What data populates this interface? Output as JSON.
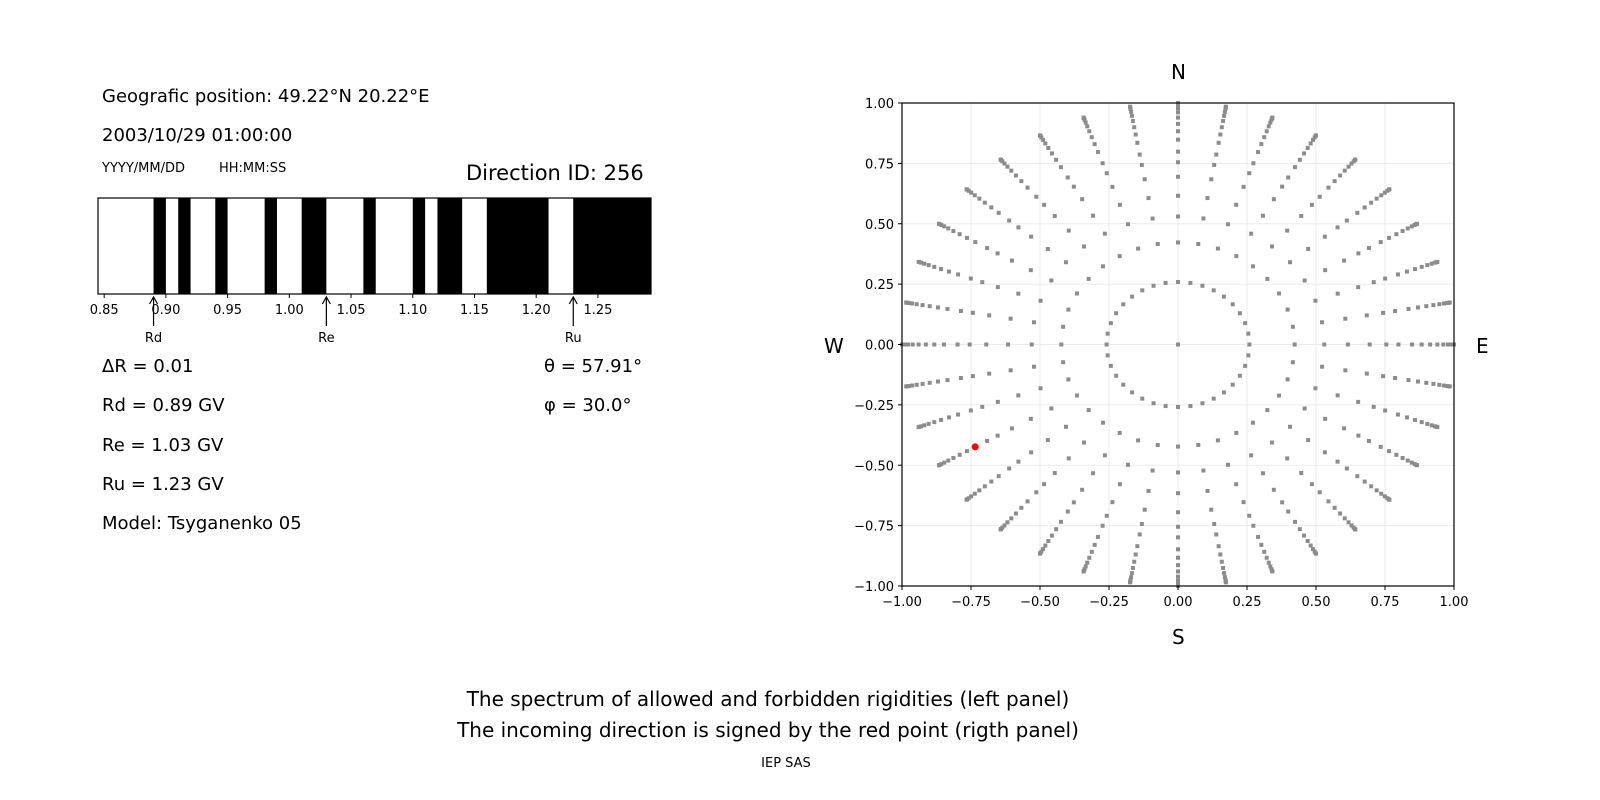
{
  "left_panel": {
    "position_label": "Geografic position: 49.22°N 20.22°E",
    "datetime": "2003/10/29 01:00:00",
    "date_format": "YYYY/MM/DD",
    "time_format": "HH:MM:SS",
    "direction_id": "Direction ID: 256",
    "delta_r": "ΔR = 0.01",
    "rd": "Rd = 0.89 GV",
    "re": "Re = 1.03 GV",
    "ru": "Ru = 1.23 GV",
    "model": "Model: Tsyganenko 05",
    "theta": "θ = 57.91°",
    "phi": "φ = 30.0°"
  },
  "right_panel": {
    "north": "N",
    "south": "S",
    "west": "W",
    "east": "E"
  },
  "footer": {
    "line1": "The spectrum of allowed and forbidden rigidities (left panel)",
    "line2": "The incoming direction is signed by the red point (rigth panel)",
    "credit": "IEP SAS"
  },
  "chart_data": [
    {
      "type": "bar",
      "xlim": [
        0.845,
        1.293
      ],
      "xticks": [
        "0.85",
        "0.90",
        "0.95",
        "1.00",
        "1.05",
        "1.10",
        "1.15",
        "1.20",
        "1.25"
      ],
      "forbidden_intervals": [
        [
          0.89,
          0.9
        ],
        [
          0.91,
          0.92
        ],
        [
          0.94,
          0.95
        ],
        [
          0.98,
          0.99
        ],
        [
          1.01,
          1.03
        ],
        [
          1.06,
          1.07
        ],
        [
          1.1,
          1.11
        ],
        [
          1.12,
          1.14
        ],
        [
          1.16,
          1.21
        ],
        [
          1.23,
          1.293
        ]
      ],
      "markers": [
        {
          "label": "Rd",
          "value": 0.89
        },
        {
          "label": "Re",
          "value": 1.03
        },
        {
          "label": "Ru",
          "value": 1.23
        }
      ],
      "colors": {
        "forbidden": "#000000",
        "allowed": "#ffffff"
      }
    },
    {
      "type": "scatter",
      "xlim": [
        -1,
        1
      ],
      "ylim": [
        -1,
        1
      ],
      "xticks": [
        "−1.00",
        "−0.75",
        "−0.50",
        "−0.25",
        "0.00",
        "0.25",
        "0.50",
        "0.75",
        "1.00"
      ],
      "yticks": [
        "1.00",
        "0.75",
        "0.50",
        "0.25",
        "0.00",
        "−0.25",
        "−0.50",
        "−0.75",
        "−1.00"
      ],
      "grid": true,
      "inner_ring_zenith_deg": [
        15,
        25
      ],
      "ring_azimuth_step_deg": 10,
      "ray_azimuth_step_deg": 10,
      "ray_zenith_deg": [
        32,
        38,
        44,
        49,
        53,
        58,
        62,
        66,
        70,
        74,
        78,
        82,
        86,
        90
      ],
      "highlight": {
        "x": -0.735,
        "y": -0.424
      },
      "colors": {
        "points": "#8c8c8c",
        "highlight": "#ff0000",
        "grid": "#ebebeb"
      }
    }
  ]
}
